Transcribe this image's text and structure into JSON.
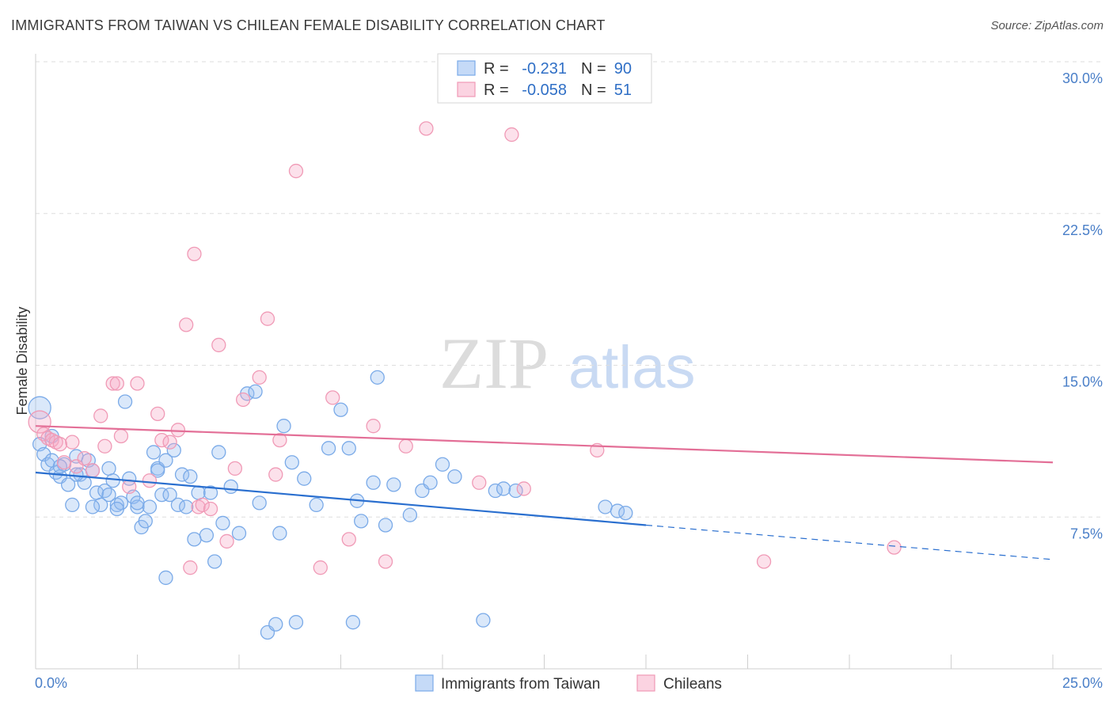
{
  "title": "IMMIGRANTS FROM TAIWAN VS CHILEAN FEMALE DISABILITY CORRELATION CHART",
  "source": "Source: ZipAtlas.com",
  "watermark": {
    "zip": "ZIP",
    "atlas": "atlas"
  },
  "chart_data": {
    "type": "scatter",
    "ylabel": "Female Disability",
    "xlim": [
      0,
      25
    ],
    "ylim": [
      0,
      30
    ],
    "y_ticks": [
      7.5,
      15.0,
      22.5,
      30.0
    ],
    "y_tick_labels": [
      "7.5%",
      "15.0%",
      "22.5%",
      "30.0%"
    ],
    "x_tick_labels": [
      "0.0%",
      "25.0%"
    ],
    "legend": [
      {
        "r_label": "R =",
        "r_value": "-0.231",
        "n_label": "N =",
        "n_value": "90"
      },
      {
        "r_label": "R =",
        "r_value": "-0.058",
        "n_label": "N =",
        "n_value": "51"
      }
    ],
    "series": [
      {
        "name": "Immigrants from Taiwan",
        "color": "#7aaae8",
        "line_color": "#2a6fcf",
        "trend": {
          "x0": 0,
          "y0": 9.7,
          "x1": 15,
          "y1": 7.1,
          "dash_to_x": 25,
          "dash_to_y": 5.4
        },
        "points": [
          [
            0.1,
            12.9
          ],
          [
            0.1,
            11.1
          ],
          [
            0.2,
            10.6
          ],
          [
            0.3,
            10.1
          ],
          [
            0.4,
            10.3
          ],
          [
            0.5,
            9.7
          ],
          [
            0.6,
            9.5
          ],
          [
            0.7,
            10.1
          ],
          [
            0.8,
            9.1
          ],
          [
            0.9,
            8.1
          ],
          [
            1.0,
            10.5
          ],
          [
            1.1,
            9.6
          ],
          [
            1.2,
            9.2
          ],
          [
            1.3,
            10.3
          ],
          [
            1.4,
            9.8
          ],
          [
            1.5,
            8.7
          ],
          [
            1.6,
            8.1
          ],
          [
            1.7,
            8.8
          ],
          [
            1.8,
            9.9
          ],
          [
            1.9,
            9.3
          ],
          [
            2.0,
            8.1
          ],
          [
            2.1,
            8.2
          ],
          [
            2.2,
            13.2
          ],
          [
            2.3,
            9.4
          ],
          [
            2.4,
            8.5
          ],
          [
            2.5,
            8.0
          ],
          [
            2.6,
            7.0
          ],
          [
            2.7,
            7.3
          ],
          [
            2.8,
            8.0
          ],
          [
            2.9,
            10.7
          ],
          [
            3.0,
            9.9
          ],
          [
            3.1,
            8.6
          ],
          [
            3.2,
            10.3
          ],
          [
            3.3,
            8.6
          ],
          [
            3.4,
            10.8
          ],
          [
            3.5,
            8.1
          ],
          [
            3.6,
            9.6
          ],
          [
            3.7,
            8.0
          ],
          [
            3.8,
            9.5
          ],
          [
            3.9,
            6.4
          ],
          [
            4.0,
            8.7
          ],
          [
            4.2,
            6.6
          ],
          [
            4.4,
            5.3
          ],
          [
            4.5,
            10.7
          ],
          [
            4.6,
            7.2
          ],
          [
            4.8,
            9.0
          ],
          [
            5.0,
            6.7
          ],
          [
            5.2,
            13.6
          ],
          [
            5.4,
            13.7
          ],
          [
            5.5,
            8.2
          ],
          [
            5.7,
            1.8
          ],
          [
            6.0,
            6.7
          ],
          [
            6.1,
            12.0
          ],
          [
            6.3,
            10.2
          ],
          [
            6.6,
            9.4
          ],
          [
            6.9,
            8.1
          ],
          [
            7.2,
            10.9
          ],
          [
            7.5,
            12.8
          ],
          [
            7.7,
            10.9
          ],
          [
            7.9,
            8.3
          ],
          [
            8.0,
            7.3
          ],
          [
            8.3,
            9.2
          ],
          [
            8.4,
            14.4
          ],
          [
            8.6,
            7.1
          ],
          [
            8.8,
            9.1
          ],
          [
            9.2,
            7.6
          ],
          [
            9.5,
            8.8
          ],
          [
            9.7,
            9.2
          ],
          [
            10.0,
            10.1
          ],
          [
            10.3,
            9.5
          ],
          [
            11.0,
            2.4
          ],
          [
            11.3,
            8.8
          ],
          [
            11.5,
            8.9
          ],
          [
            11.8,
            8.8
          ],
          [
            14.0,
            8.0
          ],
          [
            14.3,
            7.8
          ],
          [
            14.5,
            7.7
          ],
          [
            1.4,
            8.0
          ],
          [
            2.0,
            7.9
          ],
          [
            0.6,
            10.0
          ],
          [
            1.0,
            9.6
          ],
          [
            3.2,
            4.5
          ],
          [
            6.4,
            2.3
          ],
          [
            5.9,
            2.2
          ],
          [
            7.8,
            2.3
          ],
          [
            0.4,
            11.5
          ],
          [
            3.0,
            9.8
          ],
          [
            4.3,
            8.7
          ],
          [
            1.8,
            8.6
          ],
          [
            2.5,
            8.2
          ]
        ]
      },
      {
        "name": "Chileans",
        "color": "#f09ab6",
        "line_color": "#e36f97",
        "trend": {
          "x0": 0,
          "y0": 12.0,
          "x1": 25,
          "y1": 10.2
        },
        "points": [
          [
            0.1,
            12.2
          ],
          [
            0.2,
            11.6
          ],
          [
            0.3,
            11.4
          ],
          [
            0.4,
            11.3
          ],
          [
            0.5,
            11.2
          ],
          [
            0.7,
            10.2
          ],
          [
            0.9,
            11.2
          ],
          [
            1.0,
            10.0
          ],
          [
            1.2,
            10.4
          ],
          [
            1.4,
            9.8
          ],
          [
            1.6,
            12.5
          ],
          [
            1.7,
            11.0
          ],
          [
            1.9,
            14.1
          ],
          [
            2.0,
            14.1
          ],
          [
            2.1,
            11.5
          ],
          [
            2.3,
            9.0
          ],
          [
            2.5,
            14.1
          ],
          [
            2.8,
            9.3
          ],
          [
            3.0,
            12.6
          ],
          [
            3.1,
            11.3
          ],
          [
            3.3,
            11.2
          ],
          [
            3.5,
            11.8
          ],
          [
            3.7,
            17.0
          ],
          [
            3.8,
            5.0
          ],
          [
            3.9,
            20.5
          ],
          [
            4.0,
            8.0
          ],
          [
            4.1,
            8.1
          ],
          [
            4.3,
            7.9
          ],
          [
            4.5,
            16.0
          ],
          [
            4.7,
            6.3
          ],
          [
            4.9,
            9.9
          ],
          [
            5.1,
            13.3
          ],
          [
            5.5,
            14.4
          ],
          [
            5.7,
            17.3
          ],
          [
            5.9,
            9.6
          ],
          [
            6.0,
            11.3
          ],
          [
            6.4,
            24.6
          ],
          [
            7.0,
            5.0
          ],
          [
            7.3,
            13.4
          ],
          [
            7.7,
            6.4
          ],
          [
            8.3,
            12.0
          ],
          [
            8.6,
            5.3
          ],
          [
            9.1,
            11.0
          ],
          [
            9.6,
            26.7
          ],
          [
            10.9,
            9.2
          ],
          [
            11.7,
            26.4
          ],
          [
            12.0,
            8.9
          ],
          [
            13.8,
            10.8
          ],
          [
            17.9,
            5.3
          ],
          [
            21.1,
            6.0
          ],
          [
            0.6,
            11.1
          ]
        ]
      }
    ]
  }
}
